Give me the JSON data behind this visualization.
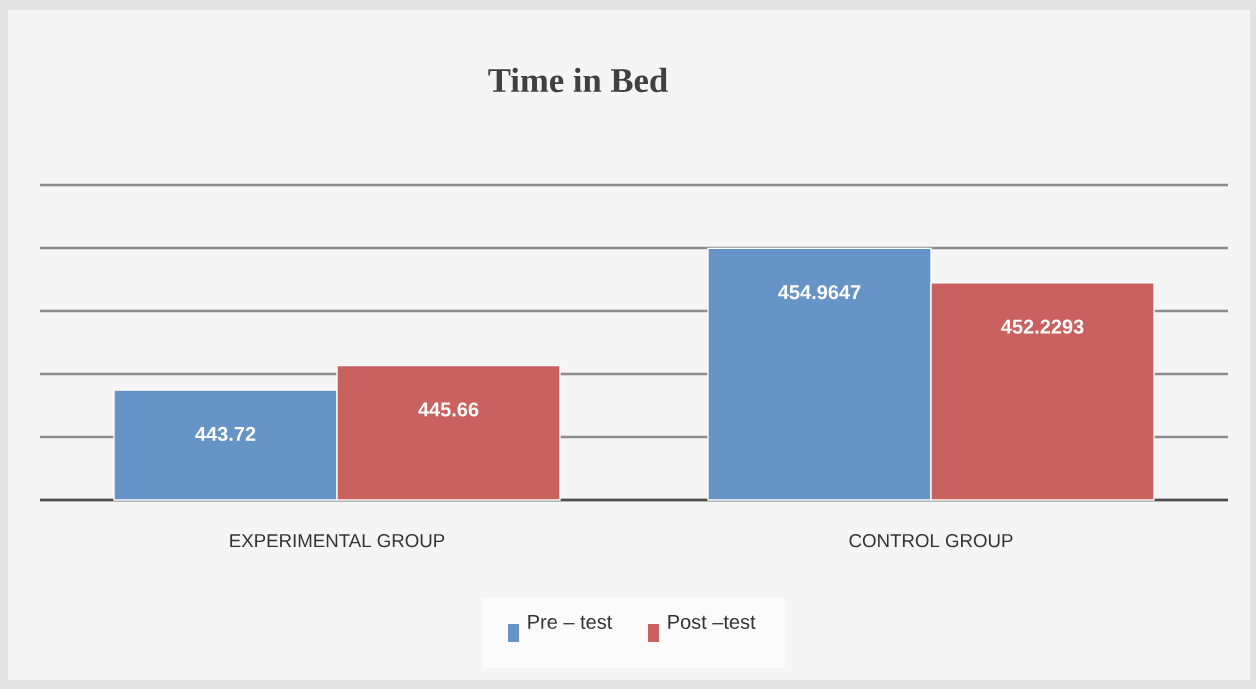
{
  "chart_data": {
    "type": "bar",
    "title": "Time in Bed",
    "categories": [
      "EXPERIMENTAL GROUP",
      "CONTROL GROUP"
    ],
    "series": [
      {
        "name": "Pre – test",
        "color": "#6794c6",
        "values": [
          443.72,
          454.9647
        ]
      },
      {
        "name": "Post –test",
        "color": "#c9625f",
        "values": [
          445.66,
          452.2293
        ]
      }
    ],
    "ylim": [
      435,
      460
    ],
    "yticks": [
      {
        "value": 435,
        "label": null
      },
      {
        "value": 440,
        "label": null
      },
      {
        "value": 445,
        "label": null
      },
      {
        "value": 450,
        "label": null
      },
      {
        "value": 455,
        "label": null
      },
      {
        "value": 460,
        "label": null
      }
    ],
    "tick_labels": "x",
    "grid": "y",
    "data_labels": true,
    "legend": "bottom"
  }
}
